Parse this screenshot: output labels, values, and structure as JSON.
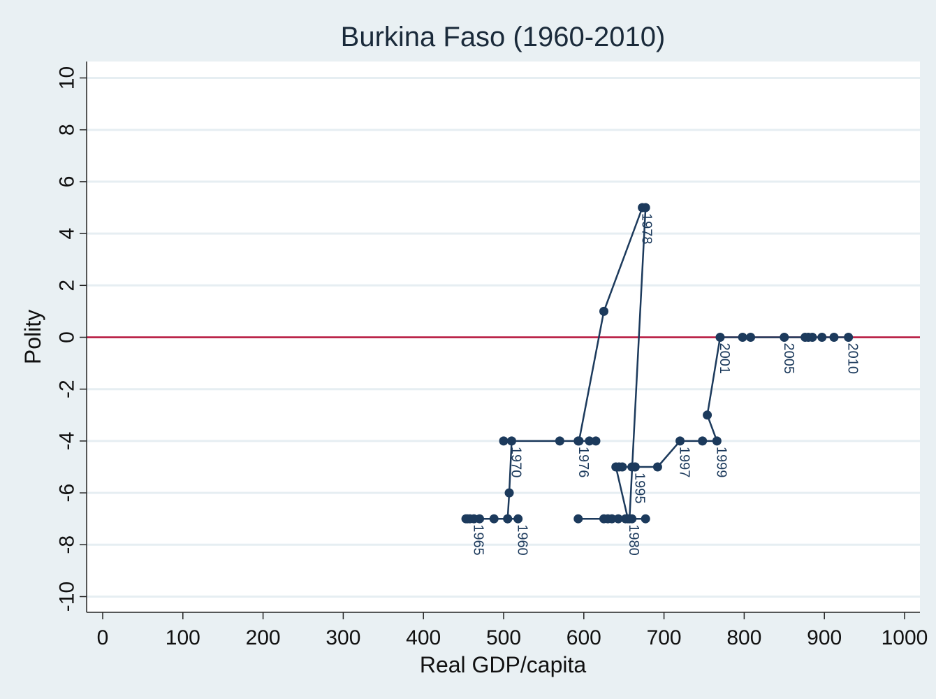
{
  "chart_data": {
    "type": "line",
    "title": "Burkina Faso (1960-2010)",
    "xlabel": "Real GDP/capita",
    "ylabel": "Polity",
    "xlim": [
      0,
      1000
    ],
    "ylim": [
      -10,
      10
    ],
    "xticks": [
      "0",
      "100",
      "200",
      "300",
      "400",
      "500",
      "600",
      "700",
      "800",
      "900",
      "1000"
    ],
    "yticks": [
      "-10",
      "-8",
      "-6",
      "-4",
      "-2",
      "0",
      "2",
      "4",
      "6",
      "8",
      "10"
    ],
    "grid": "horizontal",
    "reference_line": {
      "y": 0,
      "color": "#b5123a"
    },
    "series_color": "#1c3a5c",
    "points": [
      {
        "year": 1960,
        "x": 518,
        "y": -7,
        "label": "1960"
      },
      {
        "year": 1961,
        "x": 505,
        "y": -7
      },
      {
        "year": 1962,
        "x": 488,
        "y": -7
      },
      {
        "year": 1963,
        "x": 470,
        "y": -7
      },
      {
        "year": 1964,
        "x": 458,
        "y": -7
      },
      {
        "year": 1965,
        "x": 463,
        "y": -7,
        "label": "1965"
      },
      {
        "year": 1966,
        "x": 453,
        "y": -7
      },
      {
        "year": 1967,
        "x": 455,
        "y": -7
      },
      {
        "year": 1968,
        "x": 505,
        "y": -7
      },
      {
        "year": 1969,
        "x": 507,
        "y": -6
      },
      {
        "year": 1970,
        "x": 510,
        "y": -4,
        "label": "1970"
      },
      {
        "year": 1971,
        "x": 500,
        "y": -4
      },
      {
        "year": 1972,
        "x": 570,
        "y": -4
      },
      {
        "year": 1973,
        "x": 593,
        "y": -4
      },
      {
        "year": 1974,
        "x": 607,
        "y": -4
      },
      {
        "year": 1975,
        "x": 615,
        "y": -4
      },
      {
        "year": 1976,
        "x": 594,
        "y": -4,
        "label": "1976"
      },
      {
        "year": 1977,
        "x": 625,
        "y": 1
      },
      {
        "year": 1978,
        "x": 673,
        "y": 5,
        "label": "1978"
      },
      {
        "year": 1979,
        "x": 677,
        "y": 5
      },
      {
        "year": 1980,
        "x": 657,
        "y": -7,
        "label": "1980"
      },
      {
        "year": 1981,
        "x": 677,
        "y": -7
      },
      {
        "year": 1982,
        "x": 660,
        "y": -7
      },
      {
        "year": 1983,
        "x": 652,
        "y": -7
      },
      {
        "year": 1984,
        "x": 643,
        "y": -7
      },
      {
        "year": 1985,
        "x": 635,
        "y": -7
      },
      {
        "year": 1986,
        "x": 625,
        "y": -7
      },
      {
        "year": 1987,
        "x": 593,
        "y": -7
      },
      {
        "year": 1988,
        "x": 630,
        "y": -7
      },
      {
        "year": 1989,
        "x": 655,
        "y": -7
      },
      {
        "year": 1990,
        "x": 640,
        "y": -5
      },
      {
        "year": 1991,
        "x": 648,
        "y": -5
      },
      {
        "year": 1992,
        "x": 644,
        "y": -5
      },
      {
        "year": 1993,
        "x": 664,
        "y": -5
      },
      {
        "year": 1994,
        "x": 660,
        "y": -5
      },
      {
        "year": 1995,
        "x": 664,
        "y": -5,
        "label": "1995"
      },
      {
        "year": 1996,
        "x": 692,
        "y": -5
      },
      {
        "year": 1997,
        "x": 720,
        "y": -4,
        "label": "1997"
      },
      {
        "year": 1998,
        "x": 748,
        "y": -4
      },
      {
        "year": 1999,
        "x": 766,
        "y": -4,
        "label": "1999"
      },
      {
        "year": 2000,
        "x": 754,
        "y": -3
      },
      {
        "year": 2001,
        "x": 770,
        "y": 0,
        "label": "2001"
      },
      {
        "year": 2002,
        "x": 798,
        "y": 0
      },
      {
        "year": 2003,
        "x": 808,
        "y": 0
      },
      {
        "year": 2004,
        "x": 880,
        "y": 0
      },
      {
        "year": 2005,
        "x": 850,
        "y": 0,
        "label": "2005"
      },
      {
        "year": 2006,
        "x": 876,
        "y": 0
      },
      {
        "year": 2007,
        "x": 885,
        "y": 0
      },
      {
        "year": 2008,
        "x": 897,
        "y": 0
      },
      {
        "year": 2009,
        "x": 912,
        "y": 0
      },
      {
        "year": 2010,
        "x": 930,
        "y": 0,
        "label": "2010"
      }
    ]
  }
}
